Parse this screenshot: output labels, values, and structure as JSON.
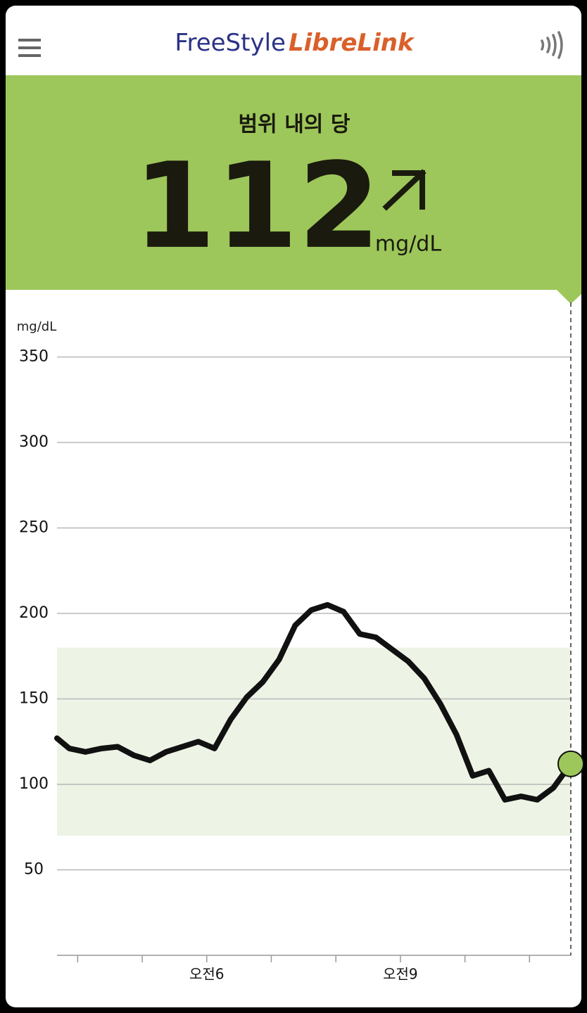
{
  "header": {
    "brand_a": "FreeStyle",
    "brand_b": "LibreLink"
  },
  "status": {
    "label": "범위 내의 당",
    "value": 112,
    "unit": "mg/dL"
  },
  "chart_data": {
    "type": "line",
    "y_label": "mg/dL",
    "x": [
      3.68,
      3.87,
      4.12,
      4.37,
      4.62,
      4.87,
      5.12,
      5.37,
      5.62,
      5.87,
      6.12,
      6.37,
      6.62,
      6.87,
      7.12,
      7.37,
      7.62,
      7.87,
      8.12,
      8.37,
      8.62,
      8.87,
      9.12,
      9.37,
      9.62,
      9.87,
      10.12,
      10.37,
      10.62,
      10.87,
      11.12,
      11.37,
      11.64
    ],
    "values": [
      127,
      121,
      119,
      121,
      122,
      117,
      114,
      119,
      122,
      125,
      121,
      138,
      151,
      160,
      173,
      193,
      202,
      205,
      201,
      188,
      186,
      179,
      172,
      162,
      147,
      129,
      105,
      108,
      91,
      93,
      91,
      98,
      112
    ],
    "color": "#111111",
    "marker_color": "#9dc75a",
    "target_range": [
      70,
      180
    ],
    "target_color": "#edf4e5",
    "xlim": [
      3.68,
      11.64
    ],
    "ylim": [
      0,
      350
    ],
    "xticks": [
      {
        "value": 6,
        "label": "오전6"
      },
      {
        "value": 9,
        "label": "오전9"
      }
    ],
    "minor_xticks": [
      4,
      5,
      7,
      8,
      10,
      11
    ],
    "yticks": [
      50,
      100,
      150,
      200,
      250,
      300,
      350
    ],
    "grid": true
  }
}
